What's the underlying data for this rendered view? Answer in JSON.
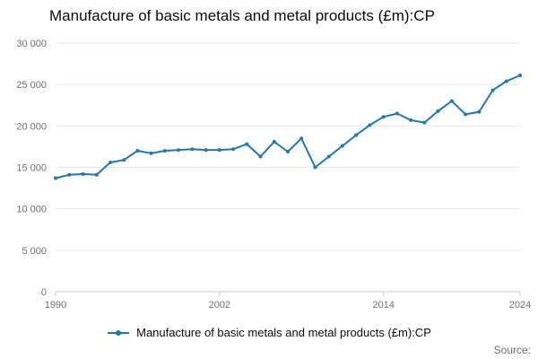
{
  "header": {
    "title": "Manufacture of basic metals and metal products (£m):CP"
  },
  "legend": {
    "label": "Manufacture of basic metals and metal products (£m):CP"
  },
  "footer": {
    "source": "Source:"
  },
  "colors": {
    "line": "#1f77b4",
    "grid": "#e6e6e6",
    "axis": "#cccccc",
    "tick_text": "#707070",
    "title_text": "#0b0c0c"
  },
  "chart_data": {
    "type": "line",
    "title": "Manufacture of basic metals and metal products (£m):CP",
    "xlabel": "",
    "ylabel": "",
    "x_range": [
      1990,
      2024
    ],
    "ylim": [
      0,
      30000
    ],
    "yticks": [
      0,
      5000,
      10000,
      15000,
      20000,
      25000,
      30000
    ],
    "ytick_labels": [
      "0",
      "5 000",
      "10 000",
      "15 000",
      "20 000",
      "25 000",
      "30 000"
    ],
    "xticks": [
      1990,
      2002,
      2014,
      2024
    ],
    "grid": "horizontal",
    "legend_position": "bottom",
    "x": [
      1990,
      1991,
      1992,
      1993,
      1994,
      1995,
      1996,
      1997,
      1998,
      1999,
      2000,
      2001,
      2002,
      2003,
      2004,
      2005,
      2006,
      2007,
      2008,
      2009,
      2010,
      2011,
      2012,
      2013,
      2014,
      2015,
      2016,
      2017,
      2018,
      2019,
      2020,
      2021,
      2022,
      2023,
      2024
    ],
    "series": [
      {
        "name": "Manufacture of basic metals and metal products (£m):CP",
        "values": [
          13700,
          14100,
          14200,
          14100,
          15600,
          15900,
          17000,
          16700,
          17000,
          17100,
          17200,
          17100,
          17100,
          17200,
          17800,
          16300,
          18100,
          16900,
          18500,
          15000,
          16300,
          17600,
          18900,
          20100,
          21100,
          21500,
          20700,
          20400,
          21800,
          23000,
          21400,
          21700,
          24300,
          25400,
          26100
        ]
      }
    ]
  }
}
